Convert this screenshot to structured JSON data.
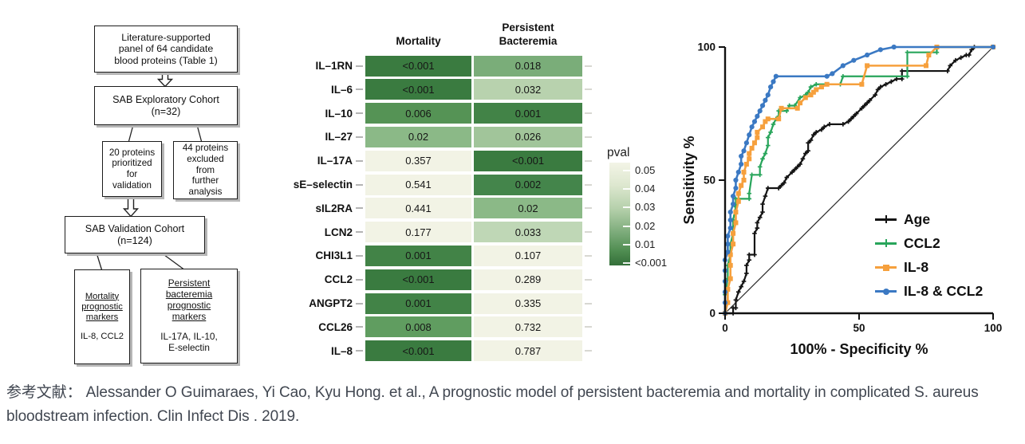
{
  "flowchart": {
    "box1": "Literature-supported\npanel of 64 candidate\nblood proteins (Table 1)",
    "box2": "SAB Exploratory Cohort\n(n=32)",
    "box3": "20 proteins\nprioritized\nfor\nvalidation",
    "box4": "44 proteins\nexcluded\nfrom\nfurther\nanalysis",
    "box5": "SAB Validation Cohort\n(n=124)",
    "box6_heading": "Mortality\nprognostic\nmarkers",
    "box6_body": "IL-8, CCL2",
    "box7_heading": "Persistent\nbacteremia\nprognostic\nmarkers",
    "box7_body": "IL-17A, IL-10,\nE-selectin"
  },
  "chart_data": [
    {
      "type": "heatmap",
      "columns": [
        "Mortality",
        "Persistent\nBacteremia"
      ],
      "rows": [
        {
          "label": "IL–1RN",
          "cells": [
            {
              "text": "<0.001",
              "color": "#3a7b40"
            },
            {
              "text": "0.018",
              "color": "#7aad79"
            }
          ]
        },
        {
          "label": "IL–6",
          "cells": [
            {
              "text": "<0.001",
              "color": "#3a7b40"
            },
            {
              "text": "0.032",
              "color": "#b8d2ae"
            }
          ]
        },
        {
          "label": "IL–10",
          "cells": [
            {
              "text": "0.006",
              "color": "#559355"
            },
            {
              "text": "0.001",
              "color": "#428347"
            }
          ]
        },
        {
          "label": "IL–27",
          "cells": [
            {
              "text": "0.02",
              "color": "#8bb987"
            },
            {
              "text": "0.026",
              "color": "#a1c59a"
            }
          ]
        },
        {
          "label": "IL–17A",
          "cells": [
            {
              "text": "0.357",
              "color": "#f2f3e5"
            },
            {
              "text": "<0.001",
              "color": "#3a7b40"
            }
          ]
        },
        {
          "label": "sE–selectin",
          "cells": [
            {
              "text": "0.541",
              "color": "#f2f3e5"
            },
            {
              "text": "0.002",
              "color": "#44854b"
            }
          ]
        },
        {
          "label": "sIL2RA",
          "cells": [
            {
              "text": "0.441",
              "color": "#f2f3e5"
            },
            {
              "text": "0.02",
              "color": "#8bb987"
            }
          ]
        },
        {
          "label": "LCN2",
          "cells": [
            {
              "text": "0.177",
              "color": "#f2f3e5"
            },
            {
              "text": "0.033",
              "color": "#bfd7b6"
            }
          ]
        },
        {
          "label": "CHI3L1",
          "cells": [
            {
              "text": "0.001",
              "color": "#428347"
            },
            {
              "text": "0.107",
              "color": "#f2f3e5"
            }
          ]
        },
        {
          "label": "CCL2",
          "cells": [
            {
              "text": "<0.001",
              "color": "#3a7b40"
            },
            {
              "text": "0.289",
              "color": "#f2f3e5"
            }
          ]
        },
        {
          "label": "ANGPT2",
          "cells": [
            {
              "text": "0.001",
              "color": "#428347"
            },
            {
              "text": "0.335",
              "color": "#f2f3e5"
            }
          ]
        },
        {
          "label": "CCL26",
          "cells": [
            {
              "text": "0.008",
              "color": "#609d60"
            },
            {
              "text": "0.732",
              "color": "#f2f3e5"
            }
          ]
        },
        {
          "label": "IL–8",
          "cells": [
            {
              "text": "<0.001",
              "color": "#3a7b40"
            },
            {
              "text": "0.787",
              "color": "#f2f3e5"
            }
          ]
        }
      ],
      "legend": {
        "title": "pval",
        "ticks": [
          "0.05",
          "0.04",
          "0.03",
          "0.02",
          "0.01",
          "<0.001"
        ],
        "low_color": "#f2f3e5",
        "high_color": "#346f3a"
      }
    },
    {
      "type": "line",
      "xlabel": "100% - Specificity %",
      "ylabel": "Sensitivity %",
      "xlim": [
        0,
        100
      ],
      "ylim": [
        0,
        100
      ],
      "xticks": [
        "0",
        "50",
        "100"
      ],
      "yticks": [
        "0",
        "50",
        "100"
      ],
      "grid": false,
      "legend_position": "inside bottom-right",
      "reference_line": {
        "from": [
          0,
          0
        ],
        "to": [
          100,
          100
        ],
        "color": "#2b2b2b"
      },
      "series": [
        {
          "name": "Age",
          "color": "#141414",
          "marker": "plus",
          "points": [
            [
              0,
              0
            ],
            [
              3,
              0
            ],
            [
              3,
              2
            ],
            [
              4,
              2
            ],
            [
              4,
              5
            ],
            [
              5,
              8
            ],
            [
              6,
              10
            ],
            [
              7,
              12
            ],
            [
              8,
              15
            ],
            [
              8,
              18
            ],
            [
              9,
              20
            ],
            [
              9,
              22
            ],
            [
              11,
              22
            ],
            [
              11,
              30
            ],
            [
              12,
              32
            ],
            [
              12,
              34
            ],
            [
              13,
              36
            ],
            [
              14,
              38
            ],
            [
              14,
              41
            ],
            [
              15,
              44
            ],
            [
              16,
              47
            ],
            [
              20,
              47
            ],
            [
              21,
              48
            ],
            [
              22,
              49
            ],
            [
              23,
              51
            ],
            [
              25,
              53
            ],
            [
              26,
              54
            ],
            [
              27,
              55
            ],
            [
              28,
              56
            ],
            [
              29,
              58
            ],
            [
              30,
              60
            ],
            [
              31,
              61
            ],
            [
              31,
              64
            ],
            [
              32,
              65
            ],
            [
              33,
              67
            ],
            [
              34,
              68
            ],
            [
              36,
              69
            ],
            [
              37,
              70
            ],
            [
              39,
              71
            ],
            [
              44,
              71
            ],
            [
              46,
              72
            ],
            [
              47,
              73
            ],
            [
              48,
              74
            ],
            [
              49,
              75
            ],
            [
              51,
              77
            ],
            [
              52,
              78
            ],
            [
              53,
              79
            ],
            [
              54,
              80
            ],
            [
              56,
              82
            ],
            [
              57,
              84
            ],
            [
              58,
              85
            ],
            [
              60,
              86
            ],
            [
              62,
              87
            ],
            [
              64,
              88
            ],
            [
              66,
              88
            ],
            [
              66,
              91
            ],
            [
              83,
              91
            ],
            [
              84,
              93
            ],
            [
              86,
              95
            ],
            [
              88,
              96
            ],
            [
              90,
              97
            ],
            [
              91,
              97
            ],
            [
              92,
              99
            ],
            [
              93,
              100
            ],
            [
              100,
              100
            ]
          ]
        },
        {
          "name": "CCL2",
          "color": "#28a55b",
          "marker": "plus",
          "points": [
            [
              0,
              0
            ],
            [
              0,
              7
            ],
            [
              1,
              13
            ],
            [
              1,
              18
            ],
            [
              2,
              22
            ],
            [
              2,
              26
            ],
            [
              3,
              30
            ],
            [
              3,
              35
            ],
            [
              4,
              40
            ],
            [
              4,
              43
            ],
            [
              9,
              43
            ],
            [
              9,
              45
            ],
            [
              10,
              52
            ],
            [
              13,
              52
            ],
            [
              13,
              55
            ],
            [
              14,
              58
            ],
            [
              15,
              60
            ],
            [
              16,
              63
            ],
            [
              16,
              66
            ],
            [
              17,
              68
            ],
            [
              18,
              71
            ],
            [
              19,
              73
            ],
            [
              20,
              74
            ],
            [
              20,
              76
            ],
            [
              23,
              76
            ],
            [
              24,
              78
            ],
            [
              26,
              78
            ],
            [
              28,
              81
            ],
            [
              30,
              82
            ],
            [
              31,
              83
            ],
            [
              32,
              85
            ],
            [
              34,
              86
            ],
            [
              43,
              86
            ],
            [
              44,
              89
            ],
            [
              68,
              89
            ],
            [
              68,
              98
            ],
            [
              79,
              98
            ],
            [
              79,
              100
            ],
            [
              100,
              100
            ]
          ]
        },
        {
          "name": "IL-8",
          "color": "#f6a03d",
          "marker": "square",
          "points": [
            [
              0,
              0
            ],
            [
              1,
              4
            ],
            [
              1,
              9
            ],
            [
              2,
              13
            ],
            [
              2,
              18
            ],
            [
              2,
              22
            ],
            [
              3,
              26
            ],
            [
              3,
              30
            ],
            [
              4,
              34
            ],
            [
              4,
              38
            ],
            [
              5,
              42
            ],
            [
              5,
              45
            ],
            [
              6,
              48
            ],
            [
              7,
              50
            ],
            [
              7,
              53
            ],
            [
              8,
              56
            ],
            [
              9,
              58
            ],
            [
              9,
              60
            ],
            [
              10,
              62
            ],
            [
              11,
              64
            ],
            [
              12,
              66
            ],
            [
              12,
              68
            ],
            [
              14,
              70
            ],
            [
              15,
              72
            ],
            [
              16,
              73
            ],
            [
              20,
              73
            ],
            [
              21,
              77
            ],
            [
              27,
              77
            ],
            [
              28,
              79
            ],
            [
              30,
              81
            ],
            [
              32,
              82
            ],
            [
              33,
              83
            ],
            [
              34,
              84
            ],
            [
              36,
              85
            ],
            [
              38,
              86
            ],
            [
              51,
              86
            ],
            [
              53,
              93
            ],
            [
              75,
              93
            ],
            [
              76,
              97
            ],
            [
              79,
              100
            ],
            [
              100,
              100
            ]
          ]
        },
        {
          "name": "IL-8 & CCL2",
          "color": "#3b79c3",
          "marker": "circle",
          "points": [
            [
              0,
              0
            ],
            [
              0,
              4
            ],
            [
              0,
              8
            ],
            [
              0,
              12
            ],
            [
              0,
              16
            ],
            [
              0,
              20
            ],
            [
              1,
              23
            ],
            [
              1,
              26
            ],
            [
              1,
              29
            ],
            [
              2,
              32
            ],
            [
              2,
              35
            ],
            [
              2,
              38
            ],
            [
              3,
              41
            ],
            [
              3,
              44
            ],
            [
              4,
              47
            ],
            [
              4,
              50
            ],
            [
              5,
              53
            ],
            [
              6,
              56
            ],
            [
              6,
              59
            ],
            [
              7,
              61
            ],
            [
              8,
              64
            ],
            [
              9,
              67
            ],
            [
              10,
              70
            ],
            [
              11,
              72
            ],
            [
              12,
              74
            ],
            [
              13,
              76
            ],
            [
              14,
              78
            ],
            [
              15,
              80
            ],
            [
              16,
              82
            ],
            [
              17,
              85
            ],
            [
              18,
              87
            ],
            [
              19,
              89
            ],
            [
              38,
              89
            ],
            [
              40,
              90
            ],
            [
              44,
              93
            ],
            [
              48,
              95
            ],
            [
              53,
              97
            ],
            [
              58,
              99
            ],
            [
              63,
              100
            ],
            [
              100,
              100
            ]
          ]
        }
      ]
    }
  ],
  "citation": "参考文献： Alessander O Guimaraes, Yi Cao, Kyu Hong. et al., A prognostic model of persistent bacteremia and mortality in complicated S. aureus bloodstream infection. Clin Infect Dis . 2019."
}
